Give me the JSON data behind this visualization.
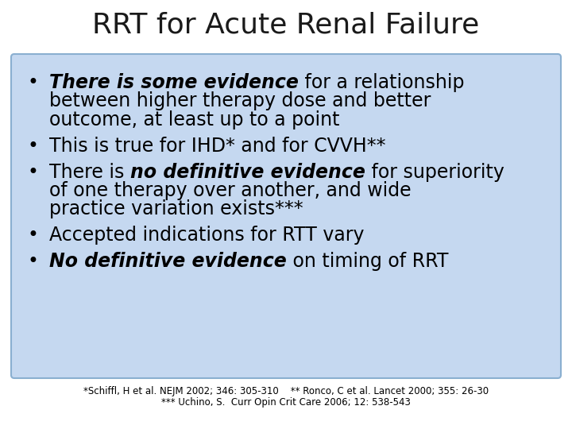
{
  "title": "RRT for Acute Renal Failure",
  "title_fontsize": 26,
  "bg_color": "#ffffff",
  "box_facecolor": "#c5d8f0",
  "box_edgecolor": "#8aafd0",
  "body_fontsize": 17,
  "footnote_fontsize": 8.5,
  "bullet_char": "•",
  "footnote_line1": "*Schiffl, H et al. NEJM 2002; 346: 305-310    ** Ronco, C et al. Lancet 2000; 355: 26-30",
  "footnote_line2": "*** Uchino, S.  Curr Opin Crit Care 2006; 12: 538-543",
  "bullets": [
    {
      "lines": [
        [
          {
            "text": "There is some evidence",
            "bold": true,
            "italic": true
          },
          {
            "text": " for a relationship",
            "bold": false,
            "italic": false
          }
        ],
        [
          {
            "text": "between higher therapy dose and better",
            "bold": false,
            "italic": false
          }
        ],
        [
          {
            "text": "outcome, at least up to a point",
            "bold": false,
            "italic": false
          }
        ]
      ]
    },
    {
      "lines": [
        [
          {
            "text": "This is true for IHD* and for CVVH**",
            "bold": false,
            "italic": false
          }
        ]
      ]
    },
    {
      "lines": [
        [
          {
            "text": "There is ",
            "bold": false,
            "italic": false
          },
          {
            "text": "no definitive evidence",
            "bold": true,
            "italic": true
          },
          {
            "text": " for superiority",
            "bold": false,
            "italic": false
          }
        ],
        [
          {
            "text": "of one therapy over another, and wide",
            "bold": false,
            "italic": false
          }
        ],
        [
          {
            "text": "practice variation exists***",
            "bold": false,
            "italic": false
          }
        ]
      ]
    },
    {
      "lines": [
        [
          {
            "text": "Accepted indications for RTT vary",
            "bold": false,
            "italic": false
          }
        ]
      ]
    },
    {
      "lines": [
        [
          {
            "text": "No definitive evidence",
            "bold": true,
            "italic": true
          },
          {
            "text": " on timing of RRT",
            "bold": false,
            "italic": false
          }
        ]
      ]
    }
  ]
}
